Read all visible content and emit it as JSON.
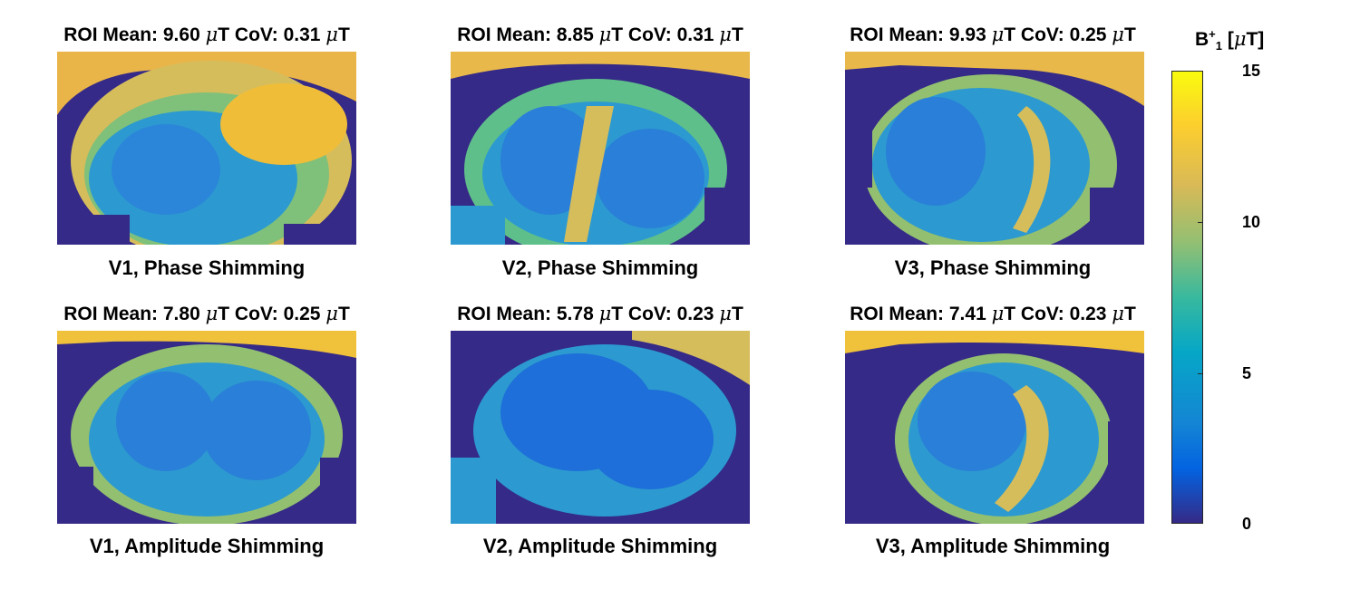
{
  "figure": {
    "panels": [
      {
        "id": "v1-phase",
        "title_pre": "ROI Mean: 9.60 ",
        "mu1": "μ",
        "title_mid": "T CoV: 0.31 ",
        "mu2": "μ",
        "title_post": "T",
        "caption": "V1, Phase Shimming",
        "level": "high"
      },
      {
        "id": "v2-phase",
        "title_pre": "ROI Mean: 8.85 ",
        "mu1": "μ",
        "title_mid": "T CoV: 0.31 ",
        "mu2": "μ",
        "title_post": "T",
        "caption": "V2, Phase Shimming",
        "level": "high"
      },
      {
        "id": "v3-phase",
        "title_pre": "ROI Mean: 9.93 ",
        "mu1": "μ",
        "title_mid": "T CoV: 0.25 ",
        "mu2": "μ",
        "title_post": "T",
        "caption": "V3, Phase Shimming",
        "level": "high"
      },
      {
        "id": "v1-amp",
        "title_pre": "ROI Mean: 7.80 ",
        "mu1": "μ",
        "title_mid": "T CoV: 0.25 ",
        "mu2": "μ",
        "title_post": "T",
        "caption": "V1, Amplitude Shimming",
        "level": "mid"
      },
      {
        "id": "v2-amp",
        "title_pre": "ROI Mean: 5.78 ",
        "mu1": "μ",
        "title_mid": "T CoV: 0.23 ",
        "mu2": "μ",
        "title_post": "T",
        "caption": "V2, Amplitude Shimming",
        "level": "low"
      },
      {
        "id": "v3-amp",
        "title_pre": "ROI Mean: 7.41 ",
        "mu1": "μ",
        "title_mid": "T CoV: 0.23 ",
        "mu2": "μ",
        "title_post": "T",
        "caption": "V3, Amplitude Shimming",
        "level": "mid"
      }
    ],
    "colorbar": {
      "label_base": "B",
      "label_sup": "+",
      "label_sub": "1",
      "label_open": " [",
      "label_mu": "μ",
      "label_close": "T]",
      "ticks": [
        "15",
        "10",
        "5",
        "0"
      ],
      "range": [
        0,
        15
      ]
    },
    "colors": {
      "background": "#352a87",
      "low": "#1e6fd9",
      "mid": "#2c9ad0",
      "teal": "#3ab8a0",
      "high": "#e8b94a",
      "top": "#f6c933"
    }
  }
}
